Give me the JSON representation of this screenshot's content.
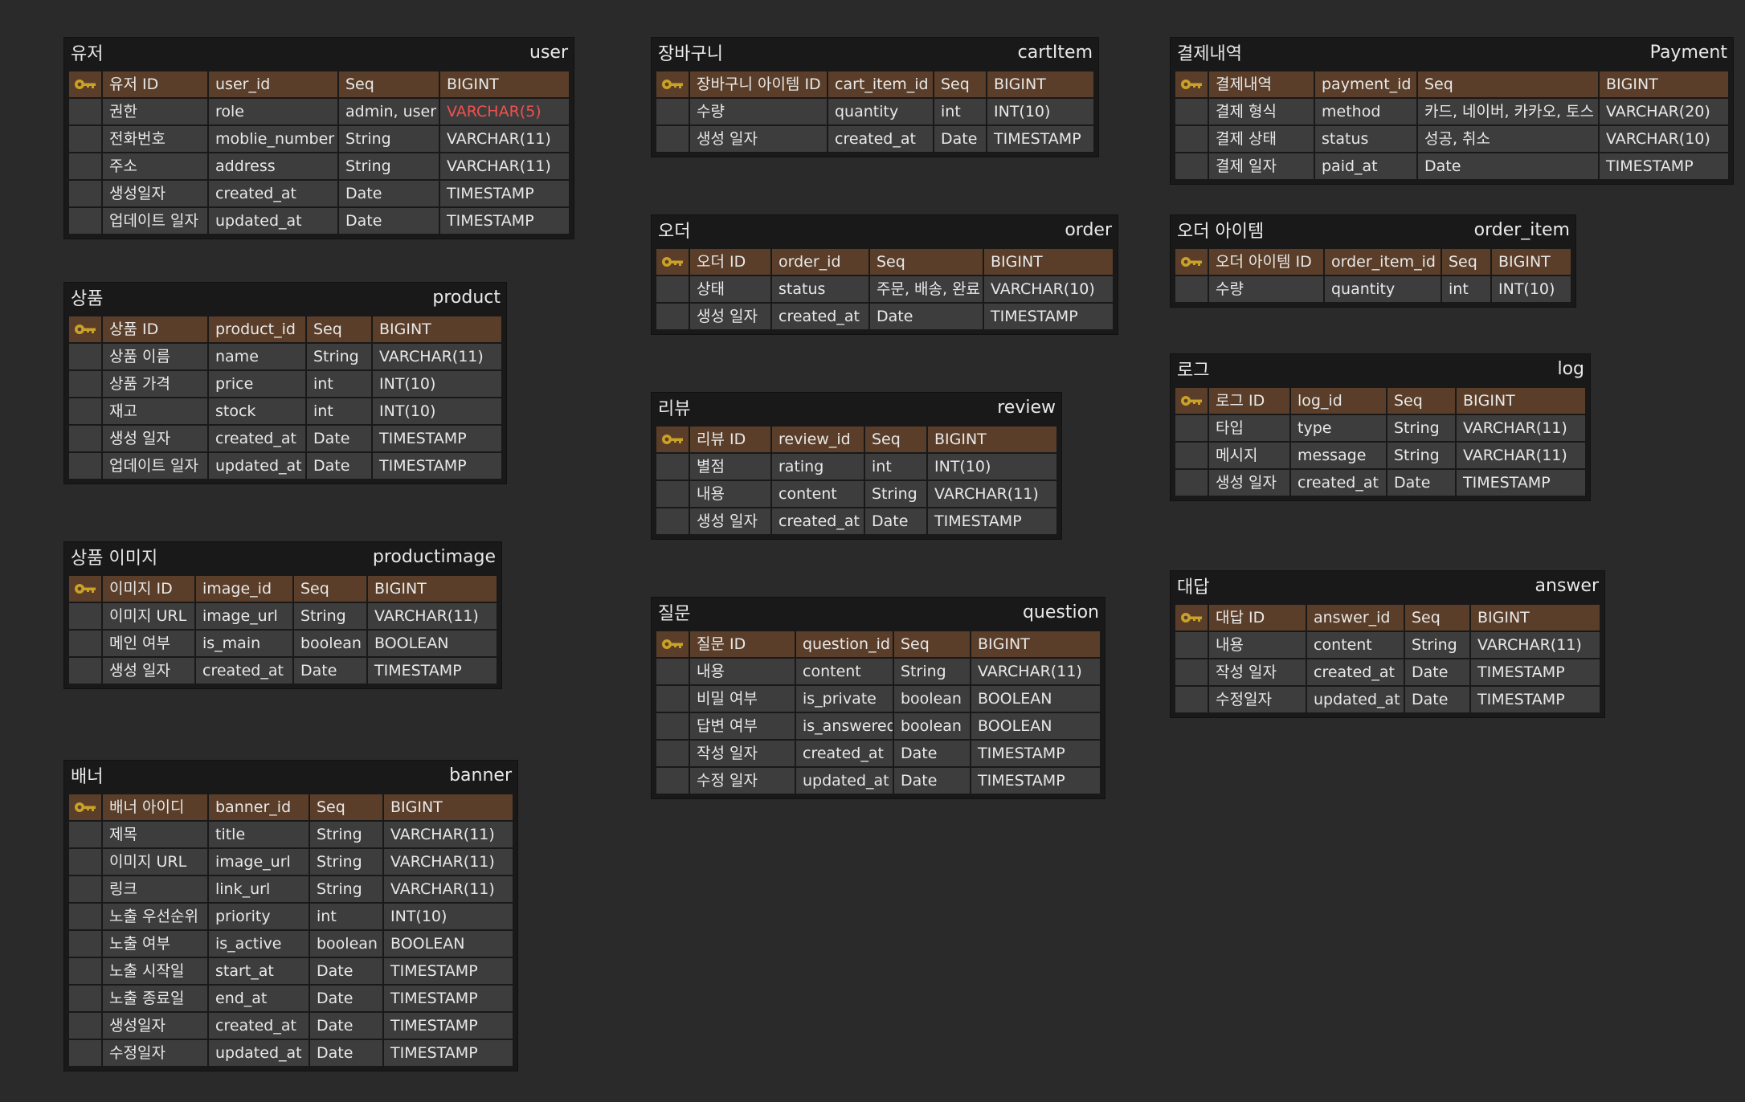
{
  "colors": {
    "background": "#2a2a2a",
    "table_bg": "#191919",
    "cell_bg": "#3d3d3d",
    "pk_row_bg": "#5a3e29",
    "key_icon": "#c9a227",
    "highlight_text": "#f05050"
  },
  "tables": [
    {
      "id": "user",
      "title_ko": "유저",
      "title_en": "user",
      "rows": [
        {
          "pk": true,
          "cells": [
            "유저 ID",
            "user_id",
            "Seq",
            "BIGINT"
          ]
        },
        {
          "pk": false,
          "cells": [
            "권한",
            "role",
            "admin, user",
            "VARCHAR(5)"
          ],
          "highlight": 3
        },
        {
          "pk": false,
          "cells": [
            "전화번호",
            "moblie_number",
            "String",
            "VARCHAR(11)"
          ]
        },
        {
          "pk": false,
          "cells": [
            "주소",
            "address",
            "String",
            "VARCHAR(11)"
          ]
        },
        {
          "pk": false,
          "cells": [
            "생성일자",
            "created_at",
            "Date",
            "TIMESTAMP"
          ]
        },
        {
          "pk": false,
          "cells": [
            "업데이트 일자",
            "updated_at",
            "Date",
            "TIMESTAMP"
          ]
        }
      ]
    },
    {
      "id": "product",
      "title_ko": "상품",
      "title_en": "product",
      "rows": [
        {
          "pk": true,
          "cells": [
            "상품 ID",
            "product_id",
            "Seq",
            "BIGINT"
          ]
        },
        {
          "pk": false,
          "cells": [
            "상품 이름",
            "name",
            "String",
            "VARCHAR(11)"
          ]
        },
        {
          "pk": false,
          "cells": [
            "상품 가격",
            "price",
            "int",
            "INT(10)"
          ]
        },
        {
          "pk": false,
          "cells": [
            "재고",
            "stock",
            "int",
            "INT(10)"
          ]
        },
        {
          "pk": false,
          "cells": [
            "생성 일자",
            "created_at",
            "Date",
            "TIMESTAMP"
          ]
        },
        {
          "pk": false,
          "cells": [
            "업데이트 일자",
            "updated_at",
            "Date",
            "TIMESTAMP"
          ]
        }
      ]
    },
    {
      "id": "productimage",
      "title_ko": "상품 이미지",
      "title_en": "productimage",
      "rows": [
        {
          "pk": true,
          "cells": [
            "이미지 ID",
            "image_id",
            "Seq",
            "BIGINT"
          ]
        },
        {
          "pk": false,
          "cells": [
            "이미지 URL",
            "image_url",
            "String",
            "VARCHAR(11)"
          ]
        },
        {
          "pk": false,
          "cells": [
            "메인 여부",
            "is_main",
            "boolean",
            "BOOLEAN"
          ]
        },
        {
          "pk": false,
          "cells": [
            "생성 일자",
            "created_at",
            "Date",
            "TIMESTAMP"
          ]
        }
      ]
    },
    {
      "id": "banner",
      "title_ko": "배너",
      "title_en": "banner",
      "rows": [
        {
          "pk": true,
          "cells": [
            "배너 아이디",
            "banner_id",
            "Seq",
            "BIGINT"
          ]
        },
        {
          "pk": false,
          "cells": [
            "제목",
            "title",
            "String",
            "VARCHAR(11)"
          ]
        },
        {
          "pk": false,
          "cells": [
            "이미지 URL",
            "image_url",
            "String",
            "VARCHAR(11)"
          ]
        },
        {
          "pk": false,
          "cells": [
            "링크",
            "link_url",
            "String",
            "VARCHAR(11)"
          ]
        },
        {
          "pk": false,
          "cells": [
            "노출 우선순위",
            "priority",
            "int",
            "INT(10)"
          ]
        },
        {
          "pk": false,
          "cells": [
            "노출 여부",
            "is_active",
            "boolean",
            "BOOLEAN"
          ]
        },
        {
          "pk": false,
          "cells": [
            "노출 시작일",
            "start_at",
            "Date",
            "TIMESTAMP"
          ]
        },
        {
          "pk": false,
          "cells": [
            "노출 종료일",
            "end_at",
            "Date",
            "TIMESTAMP"
          ]
        },
        {
          "pk": false,
          "cells": [
            "생성일자",
            "created_at",
            "Date",
            "TIMESTAMP"
          ]
        },
        {
          "pk": false,
          "cells": [
            "수정일자",
            "updated_at",
            "Date",
            "TIMESTAMP"
          ]
        }
      ]
    },
    {
      "id": "cartitem",
      "title_ko": "장바구니",
      "title_en": "cartItem",
      "rows": [
        {
          "pk": true,
          "cells": [
            "장바구니 아이템 ID",
            "cart_item_id",
            "Seq",
            "BIGINT"
          ]
        },
        {
          "pk": false,
          "cells": [
            "수량",
            "quantity",
            "int",
            "INT(10)"
          ]
        },
        {
          "pk": false,
          "cells": [
            "생성 일자",
            "created_at",
            "Date",
            "TIMESTAMP"
          ]
        }
      ]
    },
    {
      "id": "order",
      "title_ko": "오더",
      "title_en": "order",
      "rows": [
        {
          "pk": true,
          "cells": [
            "오더 ID",
            "order_id",
            "Seq",
            "BIGINT"
          ]
        },
        {
          "pk": false,
          "cells": [
            "상태",
            "status",
            "주문, 배송, 완료",
            "VARCHAR(10)"
          ]
        },
        {
          "pk": false,
          "cells": [
            "생성 일자",
            "created_at",
            "Date",
            "TIMESTAMP"
          ]
        }
      ]
    },
    {
      "id": "review",
      "title_ko": "리뷰",
      "title_en": "review",
      "rows": [
        {
          "pk": true,
          "cells": [
            "리뷰 ID",
            "review_id",
            "Seq",
            "BIGINT"
          ]
        },
        {
          "pk": false,
          "cells": [
            "별점",
            "rating",
            "int",
            "INT(10)"
          ]
        },
        {
          "pk": false,
          "cells": [
            "내용",
            "content",
            "String",
            "VARCHAR(11)"
          ]
        },
        {
          "pk": false,
          "cells": [
            "생성 일자",
            "created_at",
            "Date",
            "TIMESTAMP"
          ]
        }
      ]
    },
    {
      "id": "question",
      "title_ko": "질문",
      "title_en": "question",
      "rows": [
        {
          "pk": true,
          "cells": [
            "질문 ID",
            "question_id",
            "Seq",
            "BIGINT"
          ]
        },
        {
          "pk": false,
          "cells": [
            "내용",
            "content",
            "String",
            "VARCHAR(11)"
          ]
        },
        {
          "pk": false,
          "cells": [
            "비밀 여부",
            "is_private",
            "boolean",
            "BOOLEAN"
          ]
        },
        {
          "pk": false,
          "cells": [
            "답변 여부",
            "is_answered",
            "boolean",
            "BOOLEAN"
          ]
        },
        {
          "pk": false,
          "cells": [
            "작성 일자",
            "created_at",
            "Date",
            "TIMESTAMP"
          ]
        },
        {
          "pk": false,
          "cells": [
            "수정 일자",
            "updated_at",
            "Date",
            "TIMESTAMP"
          ]
        }
      ]
    },
    {
      "id": "payment",
      "title_ko": "결제내역",
      "title_en": "Payment",
      "rows": [
        {
          "pk": true,
          "cells": [
            "결제내역",
            "payment_id",
            "Seq",
            "BIGINT"
          ]
        },
        {
          "pk": false,
          "cells": [
            "결제 형식",
            "method",
            "카드, 네이버, 카카오, 토스",
            "VARCHAR(20)"
          ]
        },
        {
          "pk": false,
          "cells": [
            "결제 상태",
            "status",
            "성공, 취소",
            "VARCHAR(10)"
          ]
        },
        {
          "pk": false,
          "cells": [
            "결제 일자",
            "paid_at",
            "Date",
            "TIMESTAMP"
          ]
        }
      ]
    },
    {
      "id": "order_item",
      "title_ko": "오더 아이템",
      "title_en": "order_item",
      "rows": [
        {
          "pk": true,
          "cells": [
            "오더 아이템 ID",
            "order_item_id",
            "Seq",
            "BIGINT"
          ]
        },
        {
          "pk": false,
          "cells": [
            "수량",
            "quantity",
            "int",
            "INT(10)"
          ]
        }
      ]
    },
    {
      "id": "log",
      "title_ko": "로그",
      "title_en": "log",
      "rows": [
        {
          "pk": true,
          "cells": [
            "로그 ID",
            "log_id",
            "Seq",
            "BIGINT"
          ]
        },
        {
          "pk": false,
          "cells": [
            "타입",
            "type",
            "String",
            "VARCHAR(11)"
          ]
        },
        {
          "pk": false,
          "cells": [
            "메시지",
            "message",
            "String",
            "VARCHAR(11)"
          ]
        },
        {
          "pk": false,
          "cells": [
            "생성 일자",
            "created_at",
            "Date",
            "TIMESTAMP"
          ]
        }
      ]
    },
    {
      "id": "answer",
      "title_ko": "대답",
      "title_en": "answer",
      "rows": [
        {
          "pk": true,
          "cells": [
            "대답 ID",
            "answer_id",
            "Seq",
            "BIGINT"
          ]
        },
        {
          "pk": false,
          "cells": [
            "내용",
            "content",
            "String",
            "VARCHAR(11)"
          ]
        },
        {
          "pk": false,
          "cells": [
            "작성 일자",
            "created_at",
            "Date",
            "TIMESTAMP"
          ]
        },
        {
          "pk": false,
          "cells": [
            "수정일자",
            "updated_at",
            "Date",
            "TIMESTAMP"
          ]
        }
      ]
    }
  ]
}
